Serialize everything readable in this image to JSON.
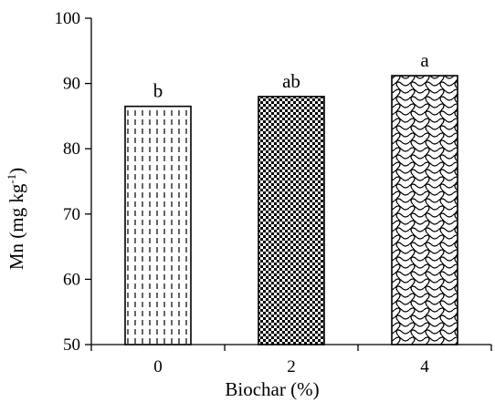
{
  "chart_data": {
    "type": "bar",
    "title": "",
    "xlabel": "Biochar (%)",
    "ylabel": {
      "text": "Mn (mg kg",
      "superscript": "-1",
      "close": ")"
    },
    "categories": [
      "0",
      "2",
      "4"
    ],
    "values": [
      86.5,
      88,
      91.2
    ],
    "significance_letters": [
      "b",
      "ab",
      "a"
    ],
    "bar_patterns": [
      "vertical-dashes",
      "checkerboard",
      "wave"
    ],
    "ylim": [
      50,
      100
    ],
    "yticks": [
      "50",
      "60",
      "70",
      "80",
      "90",
      "100"
    ],
    "grid": false,
    "legend": "none"
  }
}
